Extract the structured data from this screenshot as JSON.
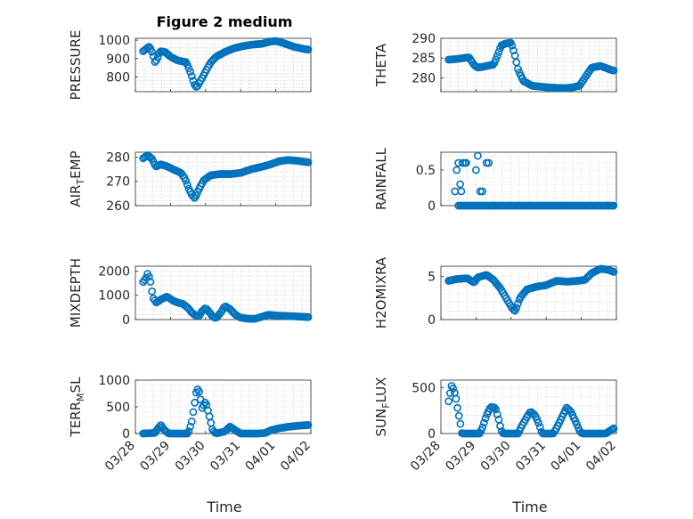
{
  "figure": {
    "title": "Figure 2 medium",
    "xlabel": "Time",
    "x_tick_labels": [
      "03/28",
      "03/29",
      "03/30",
      "03/31",
      "04/01",
      "04/02"
    ],
    "marker_color": "#0072bd"
  },
  "chart_data": [
    {
      "type": "scatter",
      "ylabel": "PRESSURE",
      "xlim": [
        0,
        5
      ],
      "ylim": [
        720,
        1010
      ],
      "yticks": [
        800,
        900,
        1000
      ],
      "grid": true,
      "profile": [
        [
          0.22,
          940
        ],
        [
          0.4,
          965
        ],
        [
          0.5,
          925
        ],
        [
          0.55,
          880
        ],
        [
          0.62,
          895
        ],
        [
          0.7,
          940
        ],
        [
          0.85,
          935
        ],
        [
          1.0,
          910
        ],
        [
          1.2,
          890
        ],
        [
          1.45,
          880
        ],
        [
          1.58,
          820
        ],
        [
          1.68,
          760
        ],
        [
          1.75,
          742
        ],
        [
          1.82,
          768
        ],
        [
          1.92,
          800
        ],
        [
          2.0,
          830
        ],
        [
          2.15,
          880
        ],
        [
          2.3,
          910
        ],
        [
          2.6,
          940
        ],
        [
          2.8,
          955
        ],
        [
          3.0,
          965
        ],
        [
          3.3,
          975
        ],
        [
          3.6,
          980
        ],
        [
          3.85,
          992
        ],
        [
          4.0,
          995
        ],
        [
          4.2,
          985
        ],
        [
          4.5,
          965
        ],
        [
          4.8,
          952
        ],
        [
          4.95,
          948
        ]
      ]
    },
    {
      "type": "scatter",
      "ylabel": "THETA",
      "xlim": [
        0,
        5
      ],
      "ylim": [
        276.5,
        290
      ],
      "yticks": [
        280,
        285,
        290
      ],
      "grid": true,
      "profile": [
        [
          0.22,
          284.6
        ],
        [
          0.5,
          284.8
        ],
        [
          0.8,
          285.2
        ],
        [
          0.95,
          283.2
        ],
        [
          1.05,
          282.6
        ],
        [
          1.2,
          282.8
        ],
        [
          1.4,
          283.2
        ],
        [
          1.5,
          283.3
        ],
        [
          1.6,
          285.4
        ],
        [
          1.72,
          288.2
        ],
        [
          1.85,
          288.7
        ],
        [
          2.0,
          288.9
        ],
        [
          2.1,
          286.0
        ],
        [
          2.2,
          282.0
        ],
        [
          2.35,
          279.2
        ],
        [
          2.6,
          278.0
        ],
        [
          2.9,
          277.7
        ],
        [
          3.2,
          277.5
        ],
        [
          3.55,
          277.4
        ],
        [
          3.75,
          277.6
        ],
        [
          3.95,
          278.0
        ],
        [
          4.1,
          280.0
        ],
        [
          4.3,
          282.6
        ],
        [
          4.55,
          283.0
        ],
        [
          4.85,
          282.0
        ],
        [
          4.95,
          281.8
        ]
      ]
    },
    {
      "type": "scatter",
      "ylabel": "AIR_TEMP",
      "xlim": [
        0,
        5
      ],
      "ylim": [
        260,
        282
      ],
      "yticks": [
        260,
        270,
        280
      ],
      "grid": true,
      "profile": [
        [
          0.22,
          279.5
        ],
        [
          0.35,
          280.8
        ],
        [
          0.48,
          279.2
        ],
        [
          0.58,
          276.0
        ],
        [
          0.72,
          277.0
        ],
        [
          0.9,
          276.2
        ],
        [
          1.1,
          274.8
        ],
        [
          1.3,
          273.5
        ],
        [
          1.42,
          271.0
        ],
        [
          1.52,
          267.0
        ],
        [
          1.62,
          264.2
        ],
        [
          1.7,
          263.0
        ],
        [
          1.8,
          266.5
        ],
        [
          1.95,
          270.5
        ],
        [
          2.15,
          272.5
        ],
        [
          2.4,
          273.0
        ],
        [
          2.7,
          273.0
        ],
        [
          3.0,
          273.5
        ],
        [
          3.3,
          275.0
        ],
        [
          3.6,
          276.0
        ],
        [
          3.85,
          277.0
        ],
        [
          4.1,
          278.3
        ],
        [
          4.35,
          278.8
        ],
        [
          4.6,
          278.5
        ],
        [
          4.85,
          278.0
        ],
        [
          4.95,
          277.8
        ]
      ]
    },
    {
      "type": "scatter",
      "ylabel": "RAINFALL",
      "xlim": [
        0,
        5
      ],
      "ylim": [
        0,
        0.75
      ],
      "yticks": [
        0,
        0.5
      ],
      "grid": true,
      "points": [
        [
          0.4,
          0.2
        ],
        [
          0.45,
          0.5
        ],
        [
          0.5,
          0.6
        ],
        [
          0.55,
          0.3
        ],
        [
          0.58,
          0.2
        ],
        [
          0.62,
          0.6
        ],
        [
          0.68,
          0.6
        ],
        [
          0.72,
          0.6
        ],
        [
          0.5,
          0
        ],
        [
          1.0,
          0.5
        ],
        [
          1.05,
          0.7
        ],
        [
          1.12,
          0.2
        ],
        [
          1.18,
          0.2
        ],
        [
          1.3,
          0.6
        ],
        [
          1.36,
          0.6
        ],
        [
          1.45,
          0
        ]
      ],
      "zero_range": [
        0.55,
        4.95
      ]
    },
    {
      "type": "scatter",
      "ylabel": "MIXDEPTH",
      "xlim": [
        0,
        5
      ],
      "ylim": [
        0,
        2200
      ],
      "yticks": [
        0,
        1000,
        2000
      ],
      "grid": true,
      "profile": [
        [
          0.22,
          1550
        ],
        [
          0.3,
          1700
        ],
        [
          0.35,
          1900
        ],
        [
          0.42,
          1650
        ],
        [
          0.5,
          900
        ],
        [
          0.6,
          700
        ],
        [
          0.75,
          850
        ],
        [
          0.9,
          950
        ],
        [
          1.05,
          800
        ],
        [
          1.2,
          700
        ],
        [
          1.35,
          650
        ],
        [
          1.5,
          480
        ],
        [
          1.6,
          300
        ],
        [
          1.7,
          180
        ],
        [
          1.8,
          120
        ],
        [
          1.9,
          350
        ],
        [
          2.0,
          480
        ],
        [
          2.1,
          320
        ],
        [
          2.2,
          120
        ],
        [
          2.3,
          60
        ],
        [
          2.45,
          320
        ],
        [
          2.55,
          560
        ],
        [
          2.7,
          430
        ],
        [
          2.85,
          200
        ],
        [
          3.0,
          80
        ],
        [
          3.2,
          40
        ],
        [
          3.4,
          30
        ],
        [
          3.6,
          120
        ],
        [
          3.8,
          200
        ],
        [
          4.0,
          170
        ],
        [
          4.3,
          150
        ],
        [
          4.6,
          130
        ],
        [
          4.85,
          110
        ],
        [
          4.95,
          100
        ]
      ]
    },
    {
      "type": "scatter",
      "ylabel": "H2OMIXRA",
      "xlim": [
        0,
        5
      ],
      "ylim": [
        0,
        6.2
      ],
      "yticks": [
        0,
        5
      ],
      "grid": true,
      "profile": [
        [
          0.22,
          4.5
        ],
        [
          0.45,
          4.7
        ],
        [
          0.75,
          4.8
        ],
        [
          0.95,
          4.3
        ],
        [
          1.05,
          4.9
        ],
        [
          1.3,
          5.2
        ],
        [
          1.5,
          4.6
        ],
        [
          1.7,
          3.6
        ],
        [
          1.9,
          2.2
        ],
        [
          2.05,
          1.2
        ],
        [
          2.12,
          1.0
        ],
        [
          2.25,
          2.5
        ],
        [
          2.45,
          3.5
        ],
        [
          2.7,
          3.8
        ],
        [
          3.0,
          4.0
        ],
        [
          3.3,
          4.5
        ],
        [
          3.6,
          4.4
        ],
        [
          3.9,
          4.5
        ],
        [
          4.1,
          4.6
        ],
        [
          4.3,
          5.4
        ],
        [
          4.55,
          5.9
        ],
        [
          4.75,
          5.8
        ],
        [
          4.95,
          5.5
        ]
      ]
    },
    {
      "type": "scatter",
      "ylabel": "TERR_MSL",
      "xlim": [
        0,
        5
      ],
      "ylim": [
        0,
        1000
      ],
      "yticks": [
        0,
        500,
        1000
      ],
      "grid": true,
      "profile": [
        [
          0.22,
          0
        ],
        [
          0.55,
          10
        ],
        [
          0.65,
          100
        ],
        [
          0.72,
          160
        ],
        [
          0.85,
          50
        ],
        [
          0.95,
          0
        ],
        [
          1.5,
          0
        ],
        [
          1.6,
          200
        ],
        [
          1.7,
          620
        ],
        [
          1.75,
          850
        ],
        [
          1.82,
          780
        ],
        [
          1.9,
          480
        ],
        [
          2.0,
          600
        ],
        [
          2.1,
          350
        ],
        [
          2.2,
          60
        ],
        [
          2.3,
          0
        ],
        [
          2.55,
          40
        ],
        [
          2.7,
          130
        ],
        [
          2.85,
          60
        ],
        [
          3.0,
          0
        ],
        [
          3.5,
          0
        ],
        [
          3.7,
          10
        ],
        [
          3.85,
          60
        ],
        [
          4.1,
          100
        ],
        [
          4.4,
          130
        ],
        [
          4.7,
          150
        ],
        [
          4.95,
          160
        ]
      ]
    },
    {
      "type": "scatter",
      "ylabel": "SUN_FLUX",
      "xlim": [
        0,
        5
      ],
      "ylim": [
        0,
        580
      ],
      "yticks": [
        0,
        500
      ],
      "grid": true,
      "profile": [
        [
          0.22,
          350
        ],
        [
          0.3,
          520
        ],
        [
          0.36,
          480
        ],
        [
          0.42,
          400
        ],
        [
          0.48,
          260
        ],
        [
          0.55,
          120
        ],
        [
          0.6,
          0
        ],
        [
          1.1,
          0
        ],
        [
          1.18,
          60
        ],
        [
          1.3,
          200
        ],
        [
          1.42,
          290
        ],
        [
          1.55,
          280
        ],
        [
          1.65,
          150
        ],
        [
          1.72,
          30
        ],
        [
          1.78,
          0
        ],
        [
          2.2,
          0
        ],
        [
          2.3,
          80
        ],
        [
          2.42,
          160
        ],
        [
          2.55,
          240
        ],
        [
          2.68,
          200
        ],
        [
          2.8,
          100
        ],
        [
          2.88,
          0
        ],
        [
          3.2,
          0
        ],
        [
          3.3,
          60
        ],
        [
          3.45,
          180
        ],
        [
          3.58,
          280
        ],
        [
          3.7,
          240
        ],
        [
          3.85,
          120
        ],
        [
          3.95,
          30
        ],
        [
          4.02,
          0
        ],
        [
          4.7,
          0
        ],
        [
          4.85,
          40
        ],
        [
          4.95,
          60
        ]
      ]
    }
  ]
}
